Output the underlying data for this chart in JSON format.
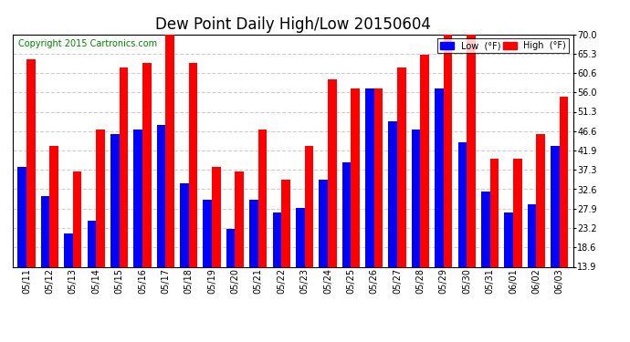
{
  "title": "Dew Point Daily High/Low 20150604",
  "copyright": "Copyright 2015 Cartronics.com",
  "dates": [
    "05/11",
    "05/12",
    "05/13",
    "05/14",
    "05/15",
    "05/16",
    "05/17",
    "05/18",
    "05/19",
    "05/20",
    "05/21",
    "05/22",
    "05/23",
    "05/24",
    "05/25",
    "05/26",
    "05/27",
    "05/28",
    "05/29",
    "05/30",
    "05/31",
    "06/01",
    "06/02",
    "06/03"
  ],
  "high": [
    64,
    43,
    37,
    47,
    62,
    63,
    70,
    63,
    38,
    37,
    47,
    35,
    43,
    59,
    57,
    57,
    62,
    65,
    70,
    70,
    40,
    40,
    46,
    55
  ],
  "low": [
    38,
    31,
    22,
    25,
    46,
    47,
    48,
    34,
    30,
    23,
    30,
    27,
    28,
    35,
    39,
    57,
    49,
    47,
    57,
    44,
    32,
    27,
    29,
    43
  ],
  "y_ticks": [
    13.9,
    18.6,
    23.2,
    27.9,
    32.6,
    37.3,
    41.9,
    46.6,
    51.3,
    56.0,
    60.6,
    65.3,
    70.0
  ],
  "ylim_min": 13.9,
  "ylim_max": 70.0,
  "low_color": "#0000ff",
  "high_color": "#ff0000",
  "bg_color": "#ffffff",
  "grid_color": "#cccccc",
  "title_fontsize": 12,
  "copyright_fontsize": 7,
  "legend_low_label": "Low  (°F)",
  "legend_high_label": "High  (°F)"
}
